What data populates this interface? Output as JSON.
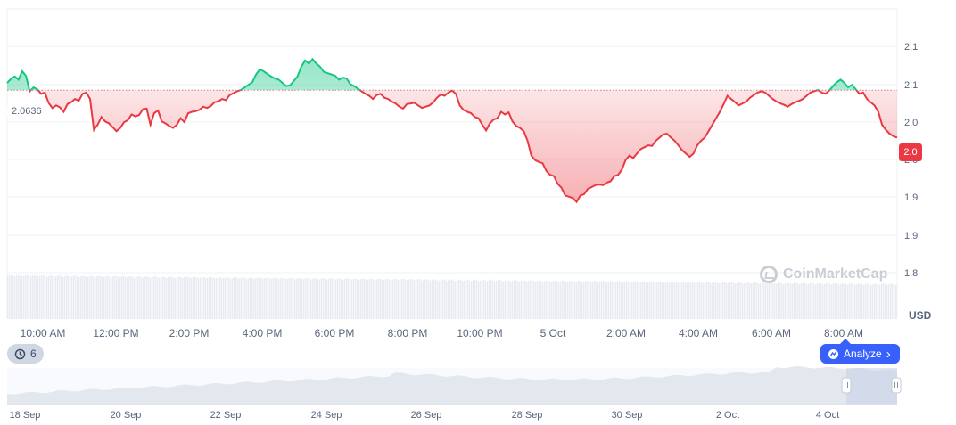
{
  "chart_data": {
    "type": "line",
    "reference_value": 2.0636,
    "reference_label": "2.0636",
    "current_price_label": "2.0",
    "unit_label": "USD",
    "y_ticks": [
      "2.1",
      "2.1",
      "2.0",
      "2.0",
      "1.9",
      "1.9",
      "1.8"
    ],
    "ylim": [
      1.78,
      2.19
    ],
    "x_ticks": [
      "10:00 AM",
      "12:00 PM",
      "2:00 PM",
      "4:00 PM",
      "6:00 PM",
      "8:00 PM",
      "10:00 PM",
      "5 Oct",
      "2:00 AM",
      "4:00 AM",
      "6:00 AM",
      "8:00 AM"
    ],
    "series": [
      {
        "values": [
          2.075,
          2.081,
          2.085,
          2.08,
          2.093,
          2.086,
          2.062,
          2.068,
          2.065,
          2.058,
          2.06,
          2.044,
          2.036,
          2.04,
          2.037,
          2.03,
          2.042,
          2.045,
          2.05,
          2.047,
          2.058,
          2.06,
          2.05,
          2.002,
          2.01,
          2.022,
          2.015,
          2.012,
          2.006,
          2.0,
          2.005,
          2.014,
          2.017,
          2.026,
          2.023,
          2.025,
          2.034,
          2.035,
          2.01,
          2.028,
          2.032,
          2.015,
          2.012,
          2.008,
          2.005,
          2.01,
          2.02,
          2.014,
          2.028,
          2.03,
          2.031,
          2.033,
          2.038,
          2.036,
          2.039,
          2.045,
          2.046,
          2.05,
          2.048,
          2.056,
          2.059,
          2.062,
          2.064,
          2.068,
          2.072,
          2.076,
          2.088,
          2.096,
          2.093,
          2.089,
          2.085,
          2.082,
          2.08,
          2.075,
          2.07,
          2.071,
          2.078,
          2.085,
          2.1,
          2.11,
          2.105,
          2.112,
          2.105,
          2.1,
          2.092,
          2.09,
          2.088,
          2.086,
          2.08,
          2.083,
          2.082,
          2.073,
          2.07,
          2.066,
          2.062,
          2.058,
          2.055,
          2.05,
          2.056,
          2.058,
          2.052,
          2.05,
          2.046,
          2.043,
          2.038,
          2.035,
          2.042,
          2.043,
          2.044,
          2.04,
          2.036,
          2.038,
          2.04,
          2.045,
          2.052,
          2.057,
          2.055,
          2.06,
          2.063,
          2.058,
          2.04,
          2.033,
          2.03,
          2.028,
          2.022,
          2.02,
          2.01,
          2.001,
          2.012,
          2.018,
          2.02,
          2.03,
          2.026,
          2.029,
          2.015,
          2.008,
          2.005,
          2.0,
          1.985,
          1.962,
          1.955,
          1.952,
          1.95,
          1.938,
          1.932,
          1.93,
          1.918,
          1.912,
          1.9,
          1.898,
          1.896,
          1.89,
          1.9,
          1.902,
          1.91,
          1.913,
          1.916,
          1.917,
          1.916,
          1.92,
          1.922,
          1.93,
          1.932,
          1.94,
          1.955,
          1.962,
          1.958,
          1.965,
          1.972,
          1.975,
          1.978,
          1.977,
          1.985,
          1.99,
          1.995,
          1.996,
          1.99,
          1.985,
          1.978,
          1.97,
          1.965,
          1.96,
          1.965,
          1.978,
          1.985,
          1.99,
          2.0,
          2.01,
          2.02,
          2.03,
          2.042,
          2.055,
          2.05,
          2.045,
          2.04,
          2.043,
          2.046,
          2.052,
          2.056,
          2.06,
          2.062,
          2.06,
          2.055,
          2.05,
          2.046,
          2.043,
          2.041,
          2.038,
          2.042,
          2.045,
          2.047,
          2.05,
          2.055,
          2.06,
          2.062,
          2.064,
          2.06,
          2.058,
          2.063,
          2.07,
          2.076,
          2.08,
          2.075,
          2.068,
          2.072,
          2.065,
          2.058,
          2.06,
          2.05,
          2.045,
          2.04,
          2.03,
          2.01,
          2.002,
          1.996,
          1.992,
          1.99
        ]
      }
    ],
    "navigator_x_ticks": [
      "18 Sep",
      "20 Sep",
      "22 Sep",
      "24 Sep",
      "26 Sep",
      "28 Sep",
      "30 Sep",
      "2 Oct",
      "4 Oct"
    ],
    "colors": {
      "up": "#16c784",
      "down": "#ea3943",
      "grid": "#eff2f5",
      "volume": "#e8ebf0"
    }
  },
  "controls": {
    "history_count": "6",
    "analyze_label": "Analyze",
    "analyze_chevron": "›"
  },
  "watermark": {
    "text": "CoinMarketCap"
  }
}
